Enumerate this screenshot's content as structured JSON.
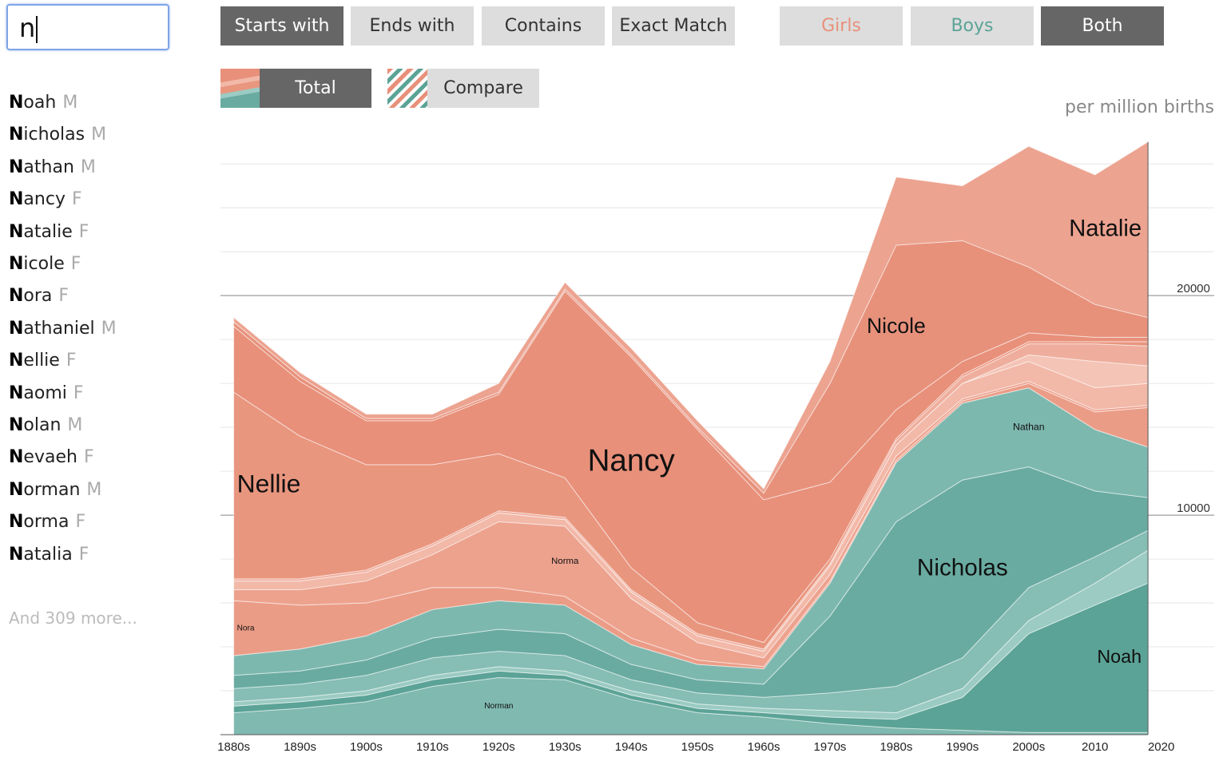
{
  "search": {
    "query": "n"
  },
  "filters": {
    "match": [
      "Starts with",
      "Ends with",
      "Contains",
      "Exact Match"
    ],
    "match_selected": 0,
    "sex": [
      "Girls",
      "Boys",
      "Both"
    ],
    "sex_selected": 2,
    "modes": [
      "Total",
      "Compare"
    ],
    "mode_selected": 0
  },
  "results": {
    "names": [
      {
        "name": "Noah",
        "sex": "M"
      },
      {
        "name": "Nicholas",
        "sex": "M"
      },
      {
        "name": "Nathan",
        "sex": "M"
      },
      {
        "name": "Nancy",
        "sex": "F"
      },
      {
        "name": "Natalie",
        "sex": "F"
      },
      {
        "name": "Nicole",
        "sex": "F"
      },
      {
        "name": "Nora",
        "sex": "F"
      },
      {
        "name": "Nathaniel",
        "sex": "M"
      },
      {
        "name": "Nellie",
        "sex": "F"
      },
      {
        "name": "Naomi",
        "sex": "F"
      },
      {
        "name": "Nolan",
        "sex": "M"
      },
      {
        "name": "Nevaeh",
        "sex": "F"
      },
      {
        "name": "Norman",
        "sex": "M"
      },
      {
        "name": "Norma",
        "sex": "F"
      },
      {
        "name": "Natalia",
        "sex": "F"
      }
    ],
    "more": "And 309 more..."
  },
  "chart_data": {
    "type": "stacked-area",
    "y_label": "per million births",
    "x": [
      1880,
      1890,
      1900,
      1910,
      1920,
      1930,
      1940,
      1950,
      1960,
      1970,
      1980,
      1990,
      2000,
      2010,
      2018
    ],
    "xlim": [
      1878,
      2028
    ],
    "xticks": [
      {
        "value": 1880,
        "label": "1880s"
      },
      {
        "value": 1890,
        "label": "1890s"
      },
      {
        "value": 1900,
        "label": "1900s"
      },
      {
        "value": 1910,
        "label": "1910s"
      },
      {
        "value": 1920,
        "label": "1920s"
      },
      {
        "value": 1930,
        "label": "1930s"
      },
      {
        "value": 1940,
        "label": "1940s"
      },
      {
        "value": 1950,
        "label": "1950s"
      },
      {
        "value": 1960,
        "label": "1960s"
      },
      {
        "value": 1970,
        "label": "1970s"
      },
      {
        "value": 1980,
        "label": "1980s"
      },
      {
        "value": 1990,
        "label": "1990s"
      },
      {
        "value": 2000,
        "label": "2000s"
      },
      2010,
      2020
    ],
    "ylim": [
      0,
      27500
    ],
    "yticks": [
      10000,
      20000
    ],
    "minor_yticks": [
      2000,
      4000,
      6000,
      8000,
      12000,
      14000,
      16000,
      18000,
      22000,
      24000,
      26000
    ],
    "series": [
      {
        "name": "Norman",
        "color": "#7fb9b0",
        "labeled": true,
        "values": [
          1000,
          1200,
          1500,
          2200,
          2600,
          2500,
          1600,
          1000,
          800,
          500,
          300,
          200,
          100,
          100,
          100
        ]
      },
      {
        "name": "Noah",
        "color": "#5ba396",
        "labeled": true,
        "values": [
          300,
          300,
          300,
          300,
          300,
          200,
          200,
          200,
          200,
          300,
          400,
          1500,
          4500,
          5800,
          6800
        ]
      },
      {
        "name": "Nolan",
        "color": "#9bcbc3",
        "labeled": false,
        "values": [
          200,
          200,
          200,
          200,
          200,
          200,
          200,
          200,
          200,
          300,
          300,
          400,
          600,
          1000,
          1500
        ]
      },
      {
        "name": "Nathaniel",
        "color": "#86bdb4",
        "labeled": false,
        "values": [
          600,
          600,
          700,
          800,
          700,
          700,
          500,
          500,
          500,
          800,
          1200,
          1400,
          1500,
          1200,
          900
        ]
      },
      {
        "name": "Nicholas",
        "color": "#69aba1",
        "labeled": true,
        "values": [
          600,
          600,
          700,
          900,
          1000,
          1000,
          700,
          600,
          600,
          3500,
          7500,
          8100,
          5500,
          3000,
          1500
        ]
      },
      {
        "name": "Nathan",
        "color": "#7db8af",
        "labeled": true,
        "values": [
          900,
          1000,
          1100,
          1300,
          1300,
          1300,
          900,
          700,
          700,
          1500,
          2700,
          3500,
          3600,
          2800,
          2300
        ]
      },
      {
        "name": "Nora",
        "color": "#eb9c86",
        "labeled": true,
        "values": [
          2500,
          2000,
          1500,
          1000,
          600,
          400,
          300,
          200,
          100,
          100,
          100,
          100,
          200,
          800,
          1800
        ]
      },
      {
        "name": "Norma",
        "color": "#eda28e",
        "labeled": true,
        "values": [
          500,
          700,
          1000,
          1500,
          3000,
          3200,
          1800,
          800,
          400,
          300,
          200,
          100,
          100,
          100,
          100
        ]
      },
      {
        "name": "Naomi",
        "color": "#f2b8a8",
        "labeled": false,
        "values": [
          400,
          400,
          400,
          400,
          400,
          300,
          300,
          300,
          300,
          400,
          500,
          700,
          900,
          1000,
          1000
        ]
      },
      {
        "name": "Nevaeh",
        "color": "#f4c4b6",
        "labeled": false,
        "values": [
          0,
          0,
          0,
          0,
          0,
          0,
          0,
          0,
          0,
          0,
          0,
          0,
          300,
          1200,
          800
        ]
      },
      {
        "name": "Natalia",
        "color": "#efae9d",
        "labeled": false,
        "values": [
          100,
          100,
          100,
          100,
          100,
          100,
          100,
          100,
          100,
          100,
          200,
          300,
          500,
          800,
          900
        ]
      },
      {
        "name": "Nellie",
        "color": "#e9967f",
        "labeled": true,
        "values": [
          8500,
          6500,
          4800,
          3600,
          2600,
          1800,
          1000,
          500,
          300,
          200,
          100,
          100,
          100,
          100,
          200
        ]
      },
      {
        "name": "Nancy",
        "color": "#e8907a",
        "labeled": true,
        "values": [
          3000,
          2500,
          2000,
          2000,
          2700,
          8500,
          9600,
          8800,
          6500,
          3500,
          1300,
          600,
          400,
          200,
          200
        ]
      },
      {
        "name": "Nicole",
        "color": "#e7917b",
        "labeled": true,
        "values": [
          200,
          200,
          100,
          100,
          100,
          100,
          100,
          100,
          300,
          4500,
          7500,
          5500,
          3000,
          1500,
          900
        ]
      },
      {
        "name": "Natalie",
        "color": "#eca390",
        "labeled": true,
        "values": [
          200,
          200,
          200,
          200,
          400,
          300,
          300,
          300,
          200,
          1000,
          3100,
          2500,
          5500,
          5900,
          8000
        ]
      }
    ]
  }
}
